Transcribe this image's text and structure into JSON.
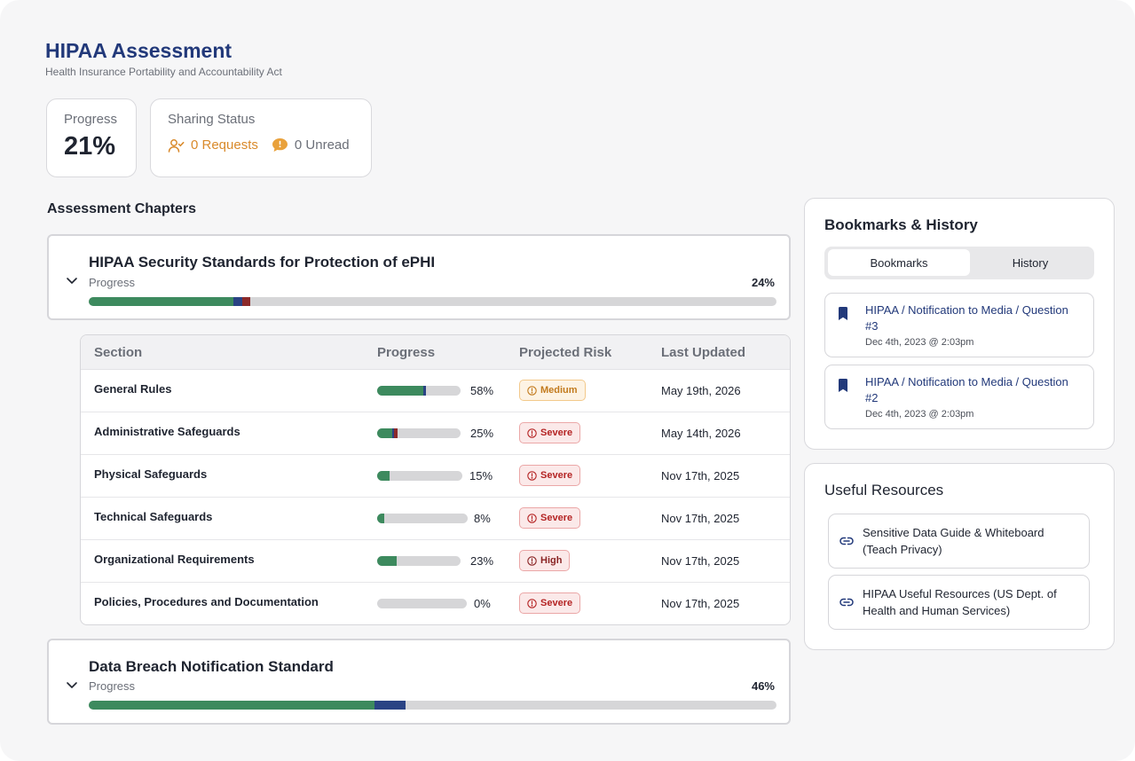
{
  "header": {
    "title": "HIPAA Assessment",
    "subtitle": "Health Insurance Portability and Accountability Act"
  },
  "progress_card": {
    "label": "Progress",
    "value": "21%"
  },
  "sharing_card": {
    "label": "Sharing Status",
    "requests": "0 Requests",
    "unread": "0 Unread",
    "requests_color": "#d98a2b"
  },
  "chapters_title": "Assessment Chapters",
  "chapters": [
    {
      "title": "HIPAA Security Standards for Protection of ePHI",
      "progress_label": "Progress",
      "percent_text": "24%",
      "segments": {
        "green": 21,
        "blue": 1.3,
        "red": 1.2
      }
    },
    {
      "title": "Data Breach Notification Standard",
      "progress_label": "Progress",
      "percent_text": "46%",
      "segments": {
        "green": 41.5,
        "blue": 4.5,
        "red": 0
      }
    }
  ],
  "sections_table": {
    "headers": [
      "Section",
      "Progress",
      "Projected Risk",
      "Last Updated"
    ],
    "rows": [
      {
        "name": "General Rules",
        "percent": 58,
        "percent_text": "58%",
        "segments": {
          "green": 55,
          "blue": 3,
          "red": 0
        },
        "risk": "Medium",
        "risk_level": "medium",
        "updated": "May 19th, 2026"
      },
      {
        "name": "Administrative Safeguards",
        "percent": 25,
        "percent_text": "25%",
        "segments": {
          "green": 18,
          "blue": 2,
          "red": 5
        },
        "risk": "Severe",
        "risk_level": "severe",
        "updated": "May 14th, 2026"
      },
      {
        "name": "Physical Safeguards",
        "percent": 15,
        "percent_text": "15%",
        "segments": {
          "green": 15,
          "blue": 0,
          "red": 0
        },
        "risk": "Severe",
        "risk_level": "severe",
        "updated": "Nov 17th, 2025"
      },
      {
        "name": "Technical Safeguards",
        "percent": 8,
        "percent_text": "8%",
        "segments": {
          "green": 8,
          "blue": 0,
          "red": 0
        },
        "risk": "Severe",
        "risk_level": "severe",
        "updated": "Nov 17th, 2025"
      },
      {
        "name": "Organizational Requirements",
        "percent": 23,
        "percent_text": "23%",
        "segments": {
          "green": 23,
          "blue": 0,
          "red": 0
        },
        "risk": "High",
        "risk_level": "high",
        "updated": "Nov 17th, 2025"
      },
      {
        "name": "Policies, Procedures and Documentation",
        "percent": 0,
        "percent_text": "0%",
        "segments": {
          "green": 0,
          "blue": 0,
          "red": 0
        },
        "risk": "Severe",
        "risk_level": "severe",
        "updated": "Nov 17th, 2025"
      }
    ]
  },
  "bookmarks_panel": {
    "title": "Bookmarks & History",
    "tabs": [
      {
        "label": "Bookmarks",
        "active": true
      },
      {
        "label": "History",
        "active": false
      }
    ],
    "items": [
      {
        "text": "HIPAA / Notification to Media / Question #3",
        "date": "Dec 4th, 2023 @ 2:03pm"
      },
      {
        "text": "HIPAA / Notification to Media / Question #2",
        "date": "Dec 4th, 2023 @ 2:03pm"
      }
    ]
  },
  "resources_panel": {
    "title": "Useful Resources",
    "items": [
      {
        "text": "Sensitive Data Guide & Whiteboard (Teach Privacy)"
      },
      {
        "text": "HIPAA Useful Resources (US Dept. of Health and Human Services)"
      }
    ]
  },
  "colors": {
    "brand": "#22397a",
    "complete": "#3d8a5e",
    "in_progress": "#2a4384",
    "flagged": "#8c2a2a",
    "track": "#d6d6d8"
  },
  "icons": {
    "chevron": "chevron-down-icon",
    "requests": "user-check-icon",
    "unread": "chat-bubble-icon",
    "risk": "alert-circle-icon",
    "bookmark": "bookmark-icon",
    "resource": "link-icon"
  }
}
